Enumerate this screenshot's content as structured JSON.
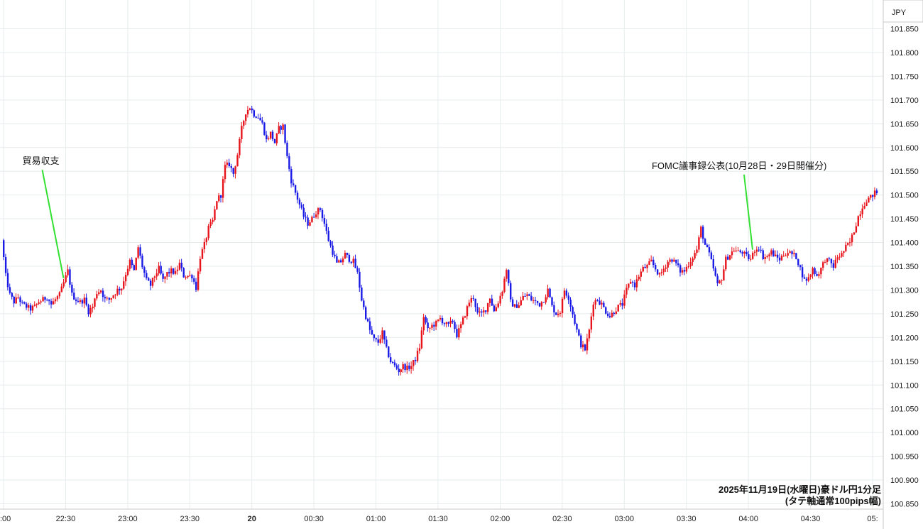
{
  "chart_data": {
    "type": "candlestick",
    "currency_label": "JPY",
    "caption_line1": "2025年11月19日(水曜日)豪ドル円1分足",
    "caption_line2": "(タテ軸通常100pips幅)",
    "ylim": [
      100.85,
      101.87
    ],
    "y_ticks": [
      "101.850",
      "101.800",
      "101.750",
      "101.700",
      "101.650",
      "101.600",
      "101.550",
      "101.500",
      "101.450",
      "101.400",
      "101.350",
      "101.300",
      "101.250",
      "101.200",
      "101.150",
      "101.100",
      "101.050",
      "101.000",
      "100.950",
      "100.900",
      "100.850"
    ],
    "x_ticks": [
      {
        "label": ":00",
        "min": 0
      },
      {
        "label": "22:30",
        "min": 30
      },
      {
        "label": "23:00",
        "min": 60
      },
      {
        "label": "23:30",
        "min": 90
      },
      {
        "label": "20",
        "min": 120
      },
      {
        "label": "00:30",
        "min": 150
      },
      {
        "label": "01:00",
        "min": 180
      },
      {
        "label": "01:30",
        "min": 210
      },
      {
        "label": "02:00",
        "min": 240
      },
      {
        "label": "02:30",
        "min": 270
      },
      {
        "label": "03:00",
        "min": 300
      },
      {
        "label": "03:30",
        "min": 330
      },
      {
        "label": "04:00",
        "min": 360
      },
      {
        "label": "04:30",
        "min": 390
      },
      {
        "label": "05:",
        "min": 420
      }
    ],
    "path_points": [
      [
        0,
        101.405
      ],
      [
        2,
        101.33
      ],
      [
        4,
        101.29
      ],
      [
        6,
        101.275
      ],
      [
        8,
        101.285
      ],
      [
        10,
        101.27
      ],
      [
        12,
        101.265
      ],
      [
        14,
        101.26
      ],
      [
        16,
        101.265
      ],
      [
        18,
        101.275
      ],
      [
        20,
        101.28
      ],
      [
        22,
        101.285
      ],
      [
        24,
        101.27
      ],
      [
        26,
        101.28
      ],
      [
        28,
        101.29
      ],
      [
        30,
        101.315
      ],
      [
        32,
        101.34
      ],
      [
        34,
        101.29
      ],
      [
        36,
        101.28
      ],
      [
        38,
        101.275
      ],
      [
        40,
        101.28
      ],
      [
        42,
        101.255
      ],
      [
        44,
        101.265
      ],
      [
        46,
        101.295
      ],
      [
        48,
        101.3
      ],
      [
        50,
        101.28
      ],
      [
        52,
        101.28
      ],
      [
        54,
        101.29
      ],
      [
        56,
        101.3
      ],
      [
        58,
        101.305
      ],
      [
        60,
        101.335
      ],
      [
        62,
        101.36
      ],
      [
        64,
        101.34
      ],
      [
        66,
        101.39
      ],
      [
        68,
        101.35
      ],
      [
        70,
        101.32
      ],
      [
        72,
        101.31
      ],
      [
        74,
        101.33
      ],
      [
        76,
        101.345
      ],
      [
        78,
        101.32
      ],
      [
        80,
        101.335
      ],
      [
        82,
        101.34
      ],
      [
        84,
        101.335
      ],
      [
        86,
        101.355
      ],
      [
        88,
        101.33
      ],
      [
        90,
        101.33
      ],
      [
        92,
        101.33
      ],
      [
        94,
        101.305
      ],
      [
        96,
        101.37
      ],
      [
        98,
        101.395
      ],
      [
        100,
        101.43
      ],
      [
        102,
        101.445
      ],
      [
        104,
        101.49
      ],
      [
        106,
        101.5
      ],
      [
        108,
        101.56
      ],
      [
        110,
        101.565
      ],
      [
        112,
        101.545
      ],
      [
        114,
        101.585
      ],
      [
        116,
        101.64
      ],
      [
        118,
        101.675
      ],
      [
        120,
        101.685
      ],
      [
        122,
        101.67
      ],
      [
        124,
        101.665
      ],
      [
        126,
        101.65
      ],
      [
        128,
        101.615
      ],
      [
        130,
        101.63
      ],
      [
        132,
        101.61
      ],
      [
        134,
        101.64
      ],
      [
        136,
        101.645
      ],
      [
        138,
        101.58
      ],
      [
        140,
        101.53
      ],
      [
        142,
        101.505
      ],
      [
        144,
        101.48
      ],
      [
        146,
        101.455
      ],
      [
        148,
        101.44
      ],
      [
        150,
        101.45
      ],
      [
        152,
        101.465
      ],
      [
        154,
        101.47
      ],
      [
        156,
        101.44
      ],
      [
        158,
        101.405
      ],
      [
        160,
        101.38
      ],
      [
        162,
        101.355
      ],
      [
        164,
        101.36
      ],
      [
        166,
        101.375
      ],
      [
        168,
        101.365
      ],
      [
        170,
        101.36
      ],
      [
        172,
        101.335
      ],
      [
        174,
        101.28
      ],
      [
        176,
        101.245
      ],
      [
        178,
        101.215
      ],
      [
        180,
        101.195
      ],
      [
        182,
        101.19
      ],
      [
        184,
        101.21
      ],
      [
        186,
        101.175
      ],
      [
        188,
        101.15
      ],
      [
        190,
        101.14
      ],
      [
        192,
        101.13
      ],
      [
        194,
        101.14
      ],
      [
        196,
        101.135
      ],
      [
        198,
        101.14
      ],
      [
        200,
        101.155
      ],
      [
        202,
        101.18
      ],
      [
        204,
        101.245
      ],
      [
        206,
        101.215
      ],
      [
        208,
        101.225
      ],
      [
        210,
        101.23
      ],
      [
        212,
        101.24
      ],
      [
        214,
        101.23
      ],
      [
        216,
        101.225
      ],
      [
        218,
        101.235
      ],
      [
        220,
        101.205
      ],
      [
        222,
        101.225
      ],
      [
        224,
        101.25
      ],
      [
        226,
        101.275
      ],
      [
        228,
        101.285
      ],
      [
        230,
        101.25
      ],
      [
        232,
        101.25
      ],
      [
        234,
        101.26
      ],
      [
        236,
        101.285
      ],
      [
        238,
        101.255
      ],
      [
        240,
        101.275
      ],
      [
        242,
        101.3
      ],
      [
        244,
        101.345
      ],
      [
        246,
        101.275
      ],
      [
        248,
        101.265
      ],
      [
        250,
        101.27
      ],
      [
        252,
        101.285
      ],
      [
        254,
        101.29
      ],
      [
        256,
        101.28
      ],
      [
        258,
        101.275
      ],
      [
        260,
        101.27
      ],
      [
        262,
        101.28
      ],
      [
        264,
        101.3
      ],
      [
        266,
        101.265
      ],
      [
        268,
        101.25
      ],
      [
        270,
        101.255
      ],
      [
        272,
        101.3
      ],
      [
        274,
        101.285
      ],
      [
        276,
        101.25
      ],
      [
        278,
        101.215
      ],
      [
        280,
        101.185
      ],
      [
        282,
        101.175
      ],
      [
        284,
        101.215
      ],
      [
        286,
        101.275
      ],
      [
        288,
        101.28
      ],
      [
        290,
        101.27
      ],
      [
        292,
        101.255
      ],
      [
        294,
        101.245
      ],
      [
        296,
        101.255
      ],
      [
        298,
        101.265
      ],
      [
        300,
        101.27
      ],
      [
        302,
        101.3
      ],
      [
        304,
        101.32
      ],
      [
        306,
        101.31
      ],
      [
        308,
        101.33
      ],
      [
        310,
        101.345
      ],
      [
        312,
        101.35
      ],
      [
        314,
        101.36
      ],
      [
        316,
        101.345
      ],
      [
        318,
        101.33
      ],
      [
        320,
        101.345
      ],
      [
        322,
        101.36
      ],
      [
        324,
        101.365
      ],
      [
        326,
        101.355
      ],
      [
        328,
        101.34
      ],
      [
        330,
        101.34
      ],
      [
        332,
        101.355
      ],
      [
        334,
        101.37
      ],
      [
        336,
        101.385
      ],
      [
        338,
        101.43
      ],
      [
        340,
        101.395
      ],
      [
        342,
        101.375
      ],
      [
        344,
        101.345
      ],
      [
        346,
        101.31
      ],
      [
        348,
        101.325
      ],
      [
        350,
        101.365
      ],
      [
        352,
        101.375
      ],
      [
        354,
        101.385
      ],
      [
        356,
        101.38
      ],
      [
        358,
        101.38
      ],
      [
        360,
        101.37
      ],
      [
        362,
        101.365
      ],
      [
        364,
        101.385
      ],
      [
        366,
        101.39
      ],
      [
        368,
        101.37
      ],
      [
        370,
        101.37
      ],
      [
        372,
        101.38
      ],
      [
        374,
        101.37
      ],
      [
        376,
        101.365
      ],
      [
        378,
        101.375
      ],
      [
        380,
        101.38
      ],
      [
        382,
        101.375
      ],
      [
        384,
        101.37
      ],
      [
        386,
        101.345
      ],
      [
        388,
        101.32
      ],
      [
        390,
        101.325
      ],
      [
        392,
        101.345
      ],
      [
        394,
        101.33
      ],
      [
        396,
        101.345
      ],
      [
        398,
        101.365
      ],
      [
        400,
        101.36
      ],
      [
        402,
        101.35
      ],
      [
        404,
        101.37
      ],
      [
        406,
        101.375
      ],
      [
        408,
        101.39
      ],
      [
        410,
        101.4
      ],
      [
        412,
        101.425
      ],
      [
        414,
        101.455
      ],
      [
        416,
        101.475
      ],
      [
        418,
        101.49
      ],
      [
        420,
        101.495
      ],
      [
        422,
        101.505
      ]
    ],
    "annotations": [
      {
        "text": "貿易収支",
        "min": 29,
        "price": 101.325,
        "label_price": 101.565
      },
      {
        "text": "FOMC議事録公表(10月28日・29日開催分)",
        "min": 362,
        "price": 101.385,
        "label_price": 101.555
      }
    ],
    "up_color": "#e8141c",
    "down_color": "#1a1ae6"
  }
}
